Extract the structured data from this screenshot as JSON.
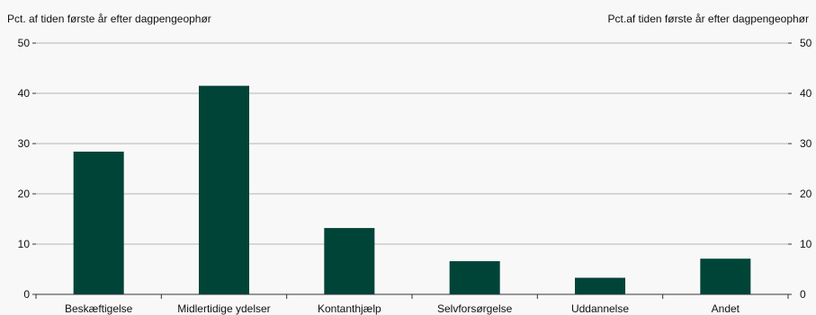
{
  "colors": {
    "bar": "#004438",
    "grid": "#b5b5b5",
    "axis": "#333333",
    "background": "#f8f8f8"
  },
  "chart_data": {
    "type": "bar",
    "title": "",
    "ylabel_left": "Pct. af tiden første år efter dagpengeophør",
    "ylabel_right": "Pct.af tiden første år efter dagpengeophør",
    "categories": [
      "Beskæftigelse",
      "Midlertidige ydelser",
      "Kontanthjælp",
      "Selvforsørgelse",
      "Uddannelse",
      "Andet"
    ],
    "values": [
      28.4,
      41.5,
      13.2,
      6.6,
      3.3,
      7.1
    ],
    "ylim": [
      0,
      50
    ],
    "yticks": [
      0,
      10,
      20,
      30,
      40,
      50
    ],
    "grid": true,
    "legend": "none"
  }
}
